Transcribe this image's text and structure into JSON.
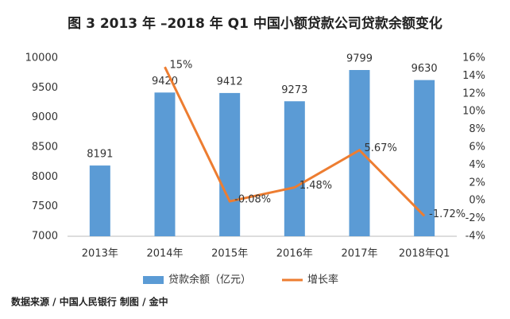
{
  "chart_data": {
    "type": "bar",
    "title": "图 3  2013 年 –2018 年 Q1 中国小额贷款公司贷款余额变化",
    "categories": [
      "2013年",
      "2014年",
      "2015年",
      "2016年",
      "2017年",
      "2018年Q1"
    ],
    "series": [
      {
        "name": "贷款余额（亿元）",
        "type": "bar",
        "color": "#5b9bd5",
        "values": [
          8191,
          9420,
          9412,
          9273,
          9799,
          9630
        ]
      },
      {
        "name": "增长率",
        "type": "line",
        "axis": "y2",
        "color": "#ed7d31",
        "values": [
          null,
          15,
          -0.08,
          1.48,
          5.67,
          -1.72
        ],
        "value_labels": [
          null,
          "15%",
          "-0.08%",
          "1.48%",
          "5.67%",
          "-1.72%"
        ]
      }
    ],
    "ylim": [
      7000,
      10000
    ],
    "yticks": [
      7000,
      7500,
      8000,
      8500,
      9000,
      9500,
      10000
    ],
    "y2lim": [
      -4,
      16
    ],
    "y2ticks": [
      {
        "value": -4,
        "label": "-4%"
      },
      {
        "value": -2,
        "label": "-2%"
      },
      {
        "value": 0,
        "label": "0%"
      },
      {
        "value": 2,
        "label": "2%"
      },
      {
        "value": 4,
        "label": "4%"
      },
      {
        "value": 6,
        "label": "6%"
      },
      {
        "value": 8,
        "label": "8%"
      },
      {
        "value": 10,
        "label": "10%"
      },
      {
        "value": 12,
        "label": "12%"
      },
      {
        "value": 14,
        "label": "14%"
      },
      {
        "value": 16,
        "label": "16%"
      }
    ],
    "grid": false,
    "legend": "bottom",
    "source": "数据来源 / 中国人民银行  制图 / 金中"
  }
}
